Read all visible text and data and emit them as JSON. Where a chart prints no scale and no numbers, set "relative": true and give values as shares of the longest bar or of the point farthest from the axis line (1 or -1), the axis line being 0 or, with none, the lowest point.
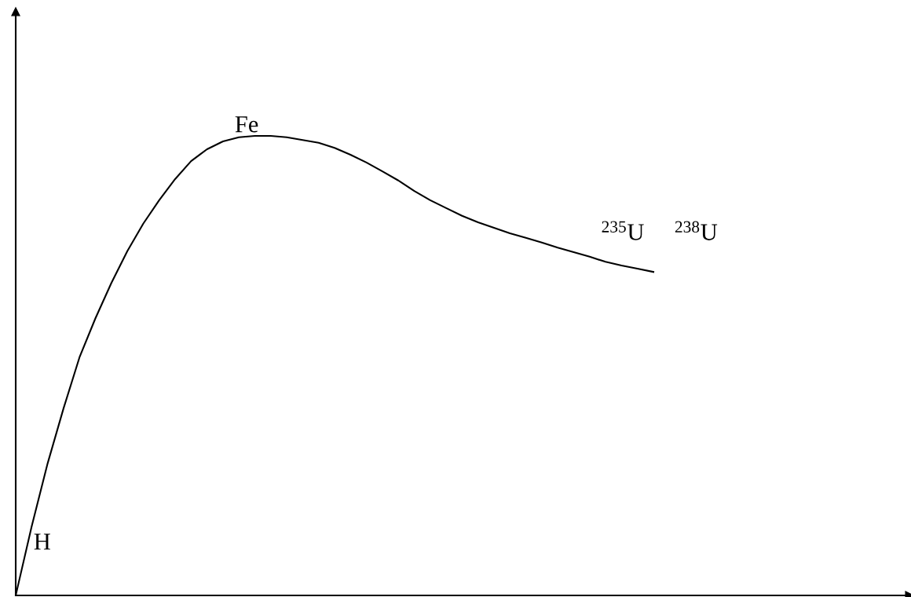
{
  "chart_data": {
    "type": "line",
    "relative": true,
    "categories": [
      null,
      null,
      null,
      null,
      null,
      null,
      null,
      null,
      null,
      null,
      null,
      null,
      null,
      null,
      null,
      null,
      null,
      null,
      null,
      null,
      null,
      null,
      null,
      null,
      null,
      null,
      null,
      null,
      null,
      null,
      null,
      null,
      null,
      null,
      null,
      null,
      null,
      null,
      null,
      null,
      null
    ],
    "series": [
      {
        "color": "#000000",
        "values": [
          0,
          0.15,
          0.287,
          0.407,
          0.518,
          0.603,
          0.68,
          0.749,
          0.809,
          0.86,
          0.906,
          0.945,
          0.971,
          0.988,
          0.997,
          1,
          1,
          0.997,
          0.991,
          0.985,
          0.974,
          0.959,
          0.942,
          0.923,
          0.903,
          0.88,
          0.86,
          0.843,
          0.826,
          0.812,
          0.8,
          0.788,
          0.778,
          0.768,
          0.757,
          0.747,
          0.737,
          0.726,
          0.718,
          0.711,
          0.704
        ]
      }
    ],
    "annotations": [
      "H",
      "Fe",
      "$^{235}$U",
      "$^{238}$U"
    ],
    "legend": false
  }
}
